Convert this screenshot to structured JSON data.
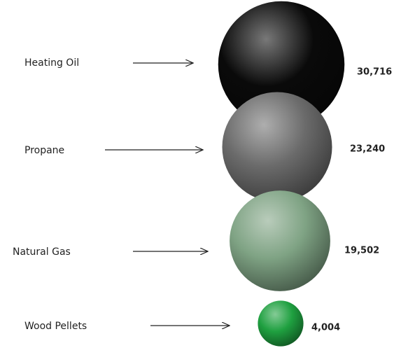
{
  "chart_data": {
    "type": "bubble",
    "categories": [
      "Heating Oil",
      "Propane",
      "Natural Gas",
      "Wood Pellets"
    ],
    "values": [
      30716,
      23240,
      19502,
      4004
    ],
    "value_labels": [
      "30,716",
      "23,240",
      "19,502",
      "4,004"
    ],
    "colors": [
      "#0a0a0a",
      "#6b6b6b",
      "#7fa384",
      "#1fa040"
    ]
  }
}
